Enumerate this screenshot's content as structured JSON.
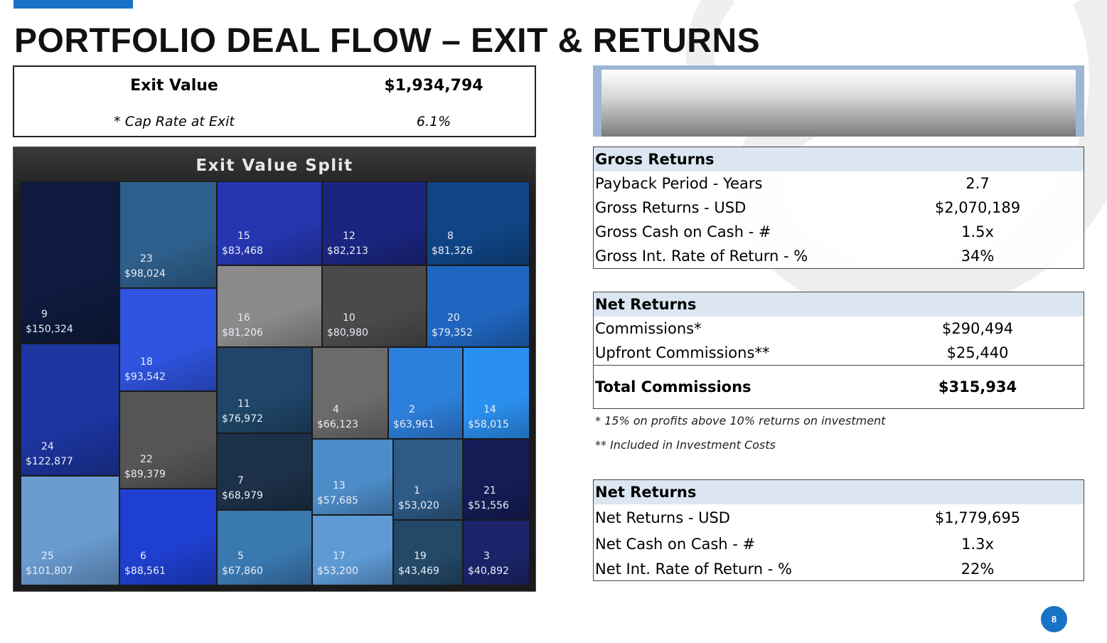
{
  "title": "PORTFOLIO DEAL FLOW – EXIT & RETURNS",
  "exit_box": {
    "label": "Exit Value",
    "value": "$1,934,794",
    "cap_label": "* Cap Rate at Exit",
    "cap_value": "6.1%"
  },
  "treemap": {
    "title": "Exit Value Split",
    "tiles": [
      {
        "id": "9",
        "value": "$150,324",
        "color": "#0e1b3f"
      },
      {
        "id": "24",
        "value": "$122,877",
        "color": "#1c35a0"
      },
      {
        "id": "25",
        "value": "$101,807",
        "color": "#6a9bd0"
      },
      {
        "id": "23",
        "value": "$98,024",
        "color": "#2e5f8c"
      },
      {
        "id": "18",
        "value": "$93,542",
        "color": "#2f54e0"
      },
      {
        "id": "22",
        "value": "$89,379",
        "color": "#555555"
      },
      {
        "id": "6",
        "value": "$88,561",
        "color": "#1f3fd0"
      },
      {
        "id": "15",
        "value": "$83,468",
        "color": "#2536b0"
      },
      {
        "id": "12",
        "value": "$82,213",
        "color": "#1a2580"
      },
      {
        "id": "8",
        "value": "$81,326",
        "color": "#0f4585"
      },
      {
        "id": "16",
        "value": "$81,206",
        "color": "#8a8a8a"
      },
      {
        "id": "10",
        "value": "$80,980",
        "color": "#4a4a4a"
      },
      {
        "id": "20",
        "value": "$79,352",
        "color": "#2066c0"
      },
      {
        "id": "11",
        "value": "$76,972",
        "color": "#1f4568"
      },
      {
        "id": "7",
        "value": "$68,979",
        "color": "#1c3048"
      },
      {
        "id": "5",
        "value": "$67,860",
        "color": "#3a78b0"
      },
      {
        "id": "4",
        "value": "$66,123",
        "color": "#6b6b6b"
      },
      {
        "id": "2",
        "value": "$63,961",
        "color": "#2d7fdc"
      },
      {
        "id": "14",
        "value": "$58,015",
        "color": "#2a90f0"
      },
      {
        "id": "13",
        "value": "$57,685",
        "color": "#4c8cc8"
      },
      {
        "id": "17",
        "value": "$53,200",
        "color": "#5d9ad6"
      },
      {
        "id": "1",
        "value": "$53,020",
        "color": "#2e5a86"
      },
      {
        "id": "21",
        "value": "$51,556",
        "color": "#141c55"
      },
      {
        "id": "19",
        "value": "$43,469",
        "color": "#234868"
      },
      {
        "id": "3",
        "value": "$40,892",
        "color": "#1b2468"
      }
    ]
  },
  "gross": {
    "header": "Gross Returns",
    "rows": [
      {
        "label": "Payback Period - Years",
        "value": "2.7"
      },
      {
        "label": "Gross Returns - USD",
        "value": "$2,070,189"
      },
      {
        "label": "Gross Cash on Cash  - #",
        "value": "1.5x"
      },
      {
        "label": "Gross Int. Rate of Return - %",
        "value": "34%"
      }
    ]
  },
  "commissions": {
    "header": "Net Returns",
    "rows": [
      {
        "label": "Commissions*",
        "value": "$290,494"
      },
      {
        "label": "Upfront Commissions**",
        "value": "$25,440"
      }
    ],
    "total_label": "Total Commissions",
    "total_value": "$315,934"
  },
  "notes": {
    "n1": "* 15% on profits above 10% returns on investment",
    "n2": "** Included in Investment Costs"
  },
  "net": {
    "header": "Net Returns",
    "rows": [
      {
        "label": "Net Returns - USD",
        "value": "$1,779,695"
      },
      {
        "label": "Net Cash on Cash  - #",
        "value": "1.3x"
      },
      {
        "label": "Net Int. Rate of Return - %",
        "value": "22%"
      }
    ]
  },
  "page_number": "8",
  "colors": {
    "accent": "#1673c6",
    "table_header": "#dbe6f2"
  }
}
